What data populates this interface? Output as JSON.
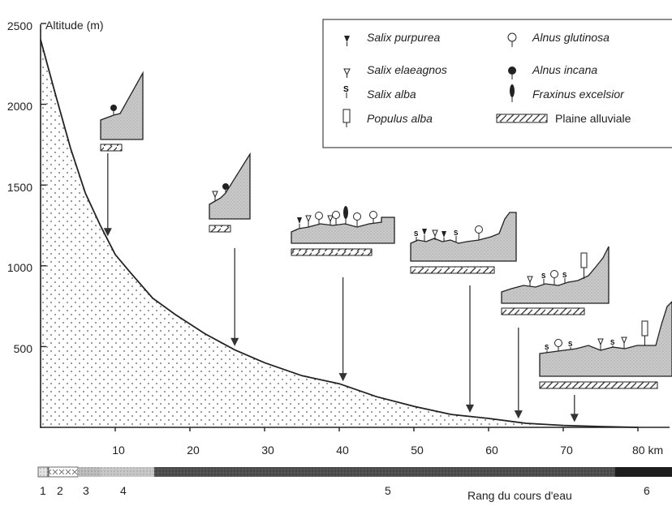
{
  "chart_data": {
    "type": "line",
    "title": "",
    "ylabel": "Altitude (m)",
    "xlabel": "",
    "x_unit_label": "80 km",
    "ylim": [
      0,
      2500
    ],
    "xlim": [
      0,
      80
    ],
    "yticks": [
      "500",
      "1000",
      "1500",
      "2000",
      "2500"
    ],
    "xticks": [
      "10",
      "20",
      "30",
      "40",
      "50",
      "60",
      "70"
    ],
    "series": [
      {
        "x": [
          0,
          2,
          4,
          6,
          8,
          10,
          12,
          15,
          18,
          22,
          26,
          30,
          35,
          40,
          45,
          50,
          55,
          60,
          65,
          70,
          75,
          80
        ],
        "y": [
          2400,
          2060,
          1730,
          1450,
          1250,
          1070,
          960,
          800,
          700,
          580,
          480,
          400,
          320,
          270,
          190,
          130,
          80,
          55,
          25,
          12,
          5,
          0
        ]
      }
    ],
    "annotations_x": [
      9,
      26,
      40.5,
      57.5,
      64,
      71.5
    ]
  },
  "legend": {
    "items": [
      {
        "label": "Salix purpurea",
        "icon": "salix-purpurea-icon"
      },
      {
        "label": "Salix elaeagnos",
        "icon": "salix-elaeagnos-icon"
      },
      {
        "label": "Salix alba",
        "icon": "salix-alba-icon"
      },
      {
        "label": "Populus alba",
        "icon": "populus-alba-icon"
      },
      {
        "label": "Alnus glutinosa",
        "icon": "alnus-glutinosa-icon"
      },
      {
        "label": "Alnus incana",
        "icon": "alnus-incana-icon"
      },
      {
        "label": "Fraxinus excelsior",
        "icon": "fraxinus-excelsior-icon"
      }
    ],
    "plaine_label": "Plaine alluviale"
  },
  "rank_bar": {
    "label": "Rang du cours d'eau",
    "numbers": [
      "1",
      "2",
      "3",
      "4",
      "5",
      "6"
    ]
  },
  "tree_symbol_letter": "S"
}
